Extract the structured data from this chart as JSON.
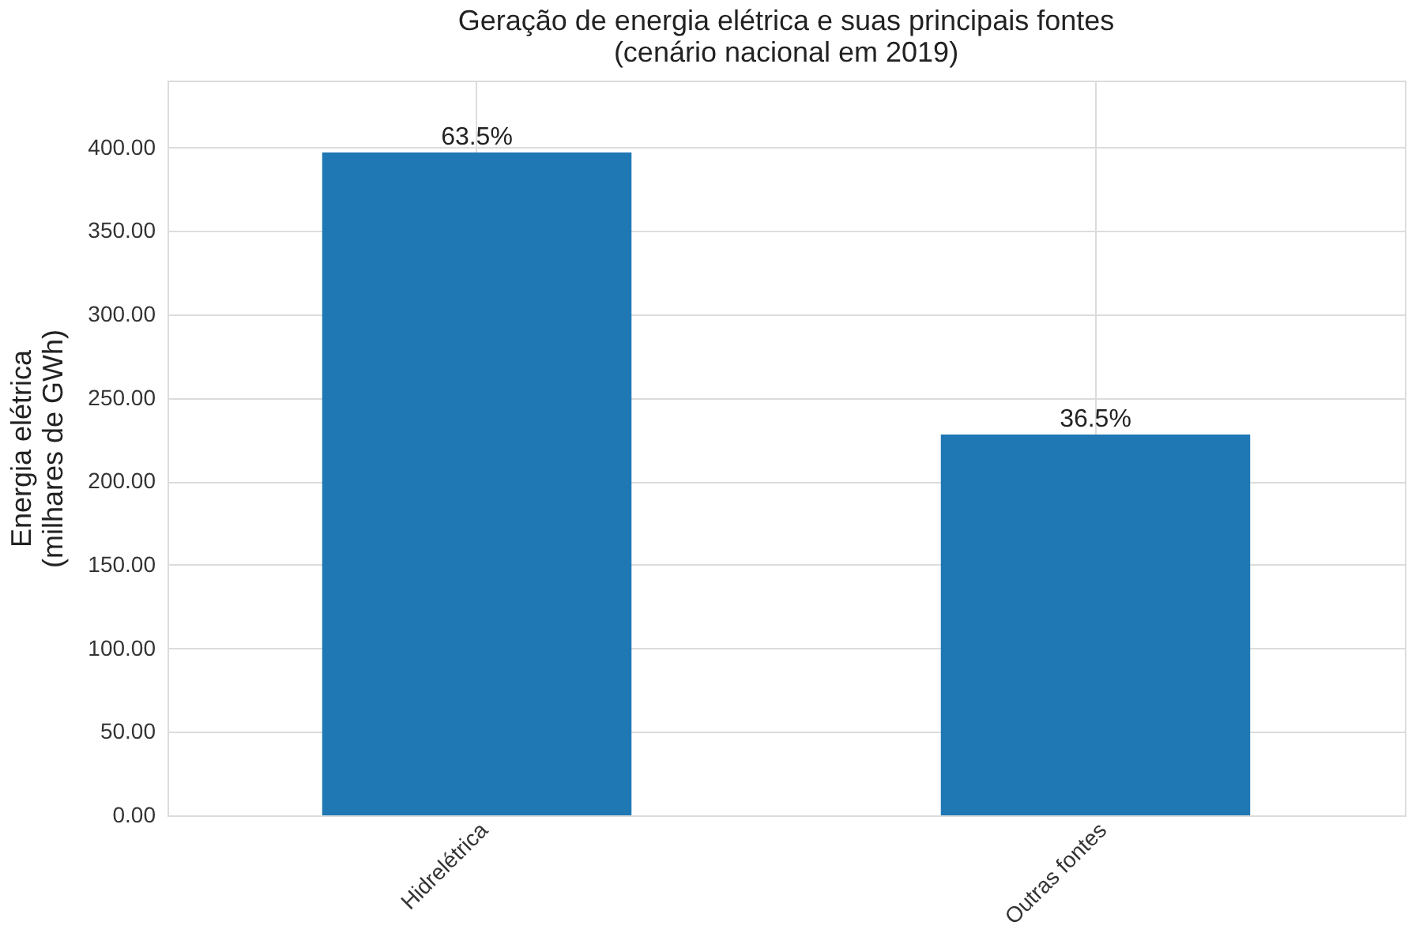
{
  "chart_data": {
    "type": "bar",
    "title": "Geração de energia elétrica e suas principais fontes\n(cenário nacional em 2019)",
    "ylabel": "Energia elétrica\n(milhares de GWh)",
    "categories": [
      "Hidrelétrica",
      "Outras fontes"
    ],
    "values": [
      397,
      228
    ],
    "annotations": [
      {
        "text": "63.5%",
        "x": "Hidrelétrica",
        "y": 397
      },
      {
        "text": "36.5%",
        "x": "Outras fontes",
        "y": 228
      }
    ],
    "color": "#1f77b4",
    "ylim": [
      0,
      440
    ],
    "yticks": [
      {
        "value": 0,
        "label": "0.00"
      },
      {
        "value": 50,
        "label": "50.00"
      },
      {
        "value": 100,
        "label": "100.00"
      },
      {
        "value": 150,
        "label": "150.00"
      },
      {
        "value": 200,
        "label": "200.00"
      },
      {
        "value": 250,
        "label": "250.00"
      },
      {
        "value": 300,
        "label": "300.00"
      },
      {
        "value": 350,
        "label": "350.00"
      },
      {
        "value": 400,
        "label": "400.00"
      }
    ],
    "grid": true
  }
}
